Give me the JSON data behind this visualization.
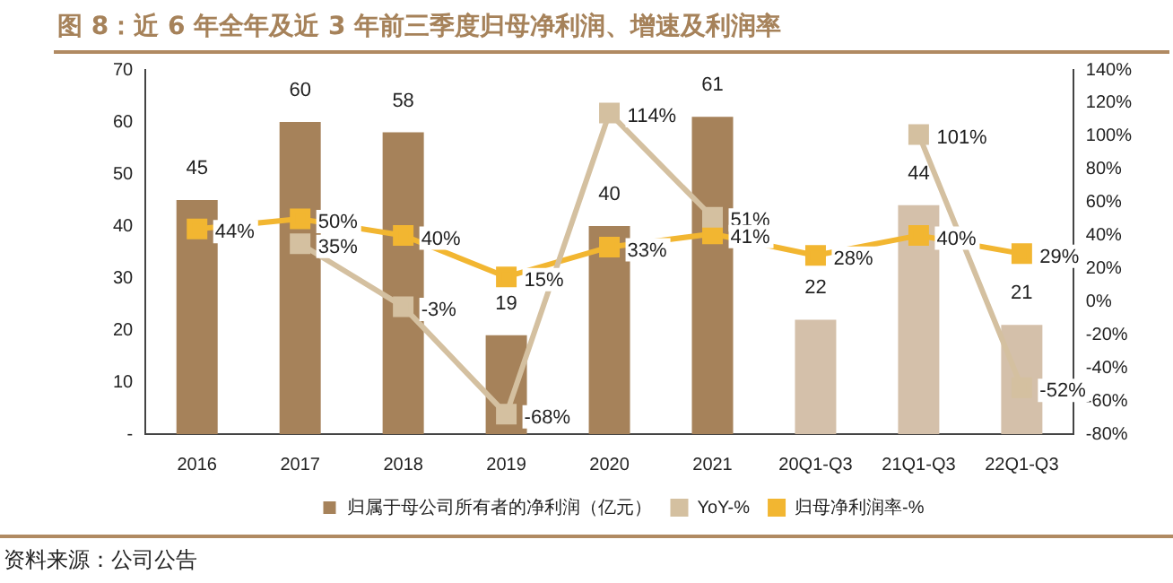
{
  "chart_data": {
    "type": "bar",
    "title": "图 8：近 6 年全年及近 3 年前三季度归母净利润、增速及利润率",
    "categories": [
      "2016",
      "2017",
      "2018",
      "2019",
      "2020",
      "2021",
      "20Q1-Q3",
      "21Q1-Q3",
      "22Q1-Q3"
    ],
    "series": [
      {
        "name": "归属于母公司所有者的净利润（亿元）",
        "colors": [
          "#a6825a",
          "#a6825a",
          "#a6825a",
          "#a6825a",
          "#a6825a",
          "#a6825a",
          "#d4c0aa",
          "#d4c0aa",
          "#d4c0aa"
        ],
        "values": [
          45,
          60,
          58,
          19,
          40,
          61,
          22,
          44,
          21
        ],
        "value_labels": [
          "45",
          "60",
          "58",
          "19",
          "40",
          "61",
          "22",
          "44",
          "21"
        ]
      },
      {
        "name": "YoY-%",
        "type": "line",
        "axis": "y2",
        "color": "#d4c0a0",
        "values": [
          null,
          35,
          -3,
          -68,
          114,
          51,
          null,
          101,
          -52
        ],
        "value_labels": [
          null,
          "35%",
          "-3%",
          "-68%",
          "114%",
          "51%",
          null,
          "101%",
          "-52%"
        ]
      },
      {
        "name": "归母净利润率-%",
        "type": "line",
        "axis": "y2",
        "color": "#f2b631",
        "values": [
          44,
          50,
          40,
          15,
          33,
          41,
          28,
          40,
          29
        ],
        "value_labels": [
          "44%",
          "50%",
          "40%",
          "15%",
          "33%",
          "41%",
          "28%",
          "40%",
          "29%"
        ]
      }
    ],
    "ylim": [
      0,
      70
    ],
    "yticks": [
      {
        "value": 0,
        "label": "-"
      },
      10,
      20,
      30,
      40,
      50,
      60,
      70
    ],
    "y2lim": [
      -80,
      140
    ],
    "y2ticks": [
      {
        "value": -80,
        "label": "-80%"
      },
      {
        "value": -60,
        "label": "-60%"
      },
      {
        "value": -40,
        "label": "-40%"
      },
      {
        "value": -20,
        "label": "-20%"
      },
      {
        "value": 0,
        "label": "0%"
      },
      {
        "value": 20,
        "label": "20%"
      },
      {
        "value": 40,
        "label": "40%"
      },
      {
        "value": 60,
        "label": "60%"
      },
      {
        "value": 80,
        "label": "80%"
      },
      {
        "value": 100,
        "label": "100%"
      },
      {
        "value": 120,
        "label": "120%"
      },
      {
        "value": 140,
        "label": "140%"
      }
    ],
    "grid": false,
    "legend": "bottom",
    "marker": "square",
    "line_style": "solid",
    "annotations": [
      "资料来源：公司公告"
    ]
  }
}
